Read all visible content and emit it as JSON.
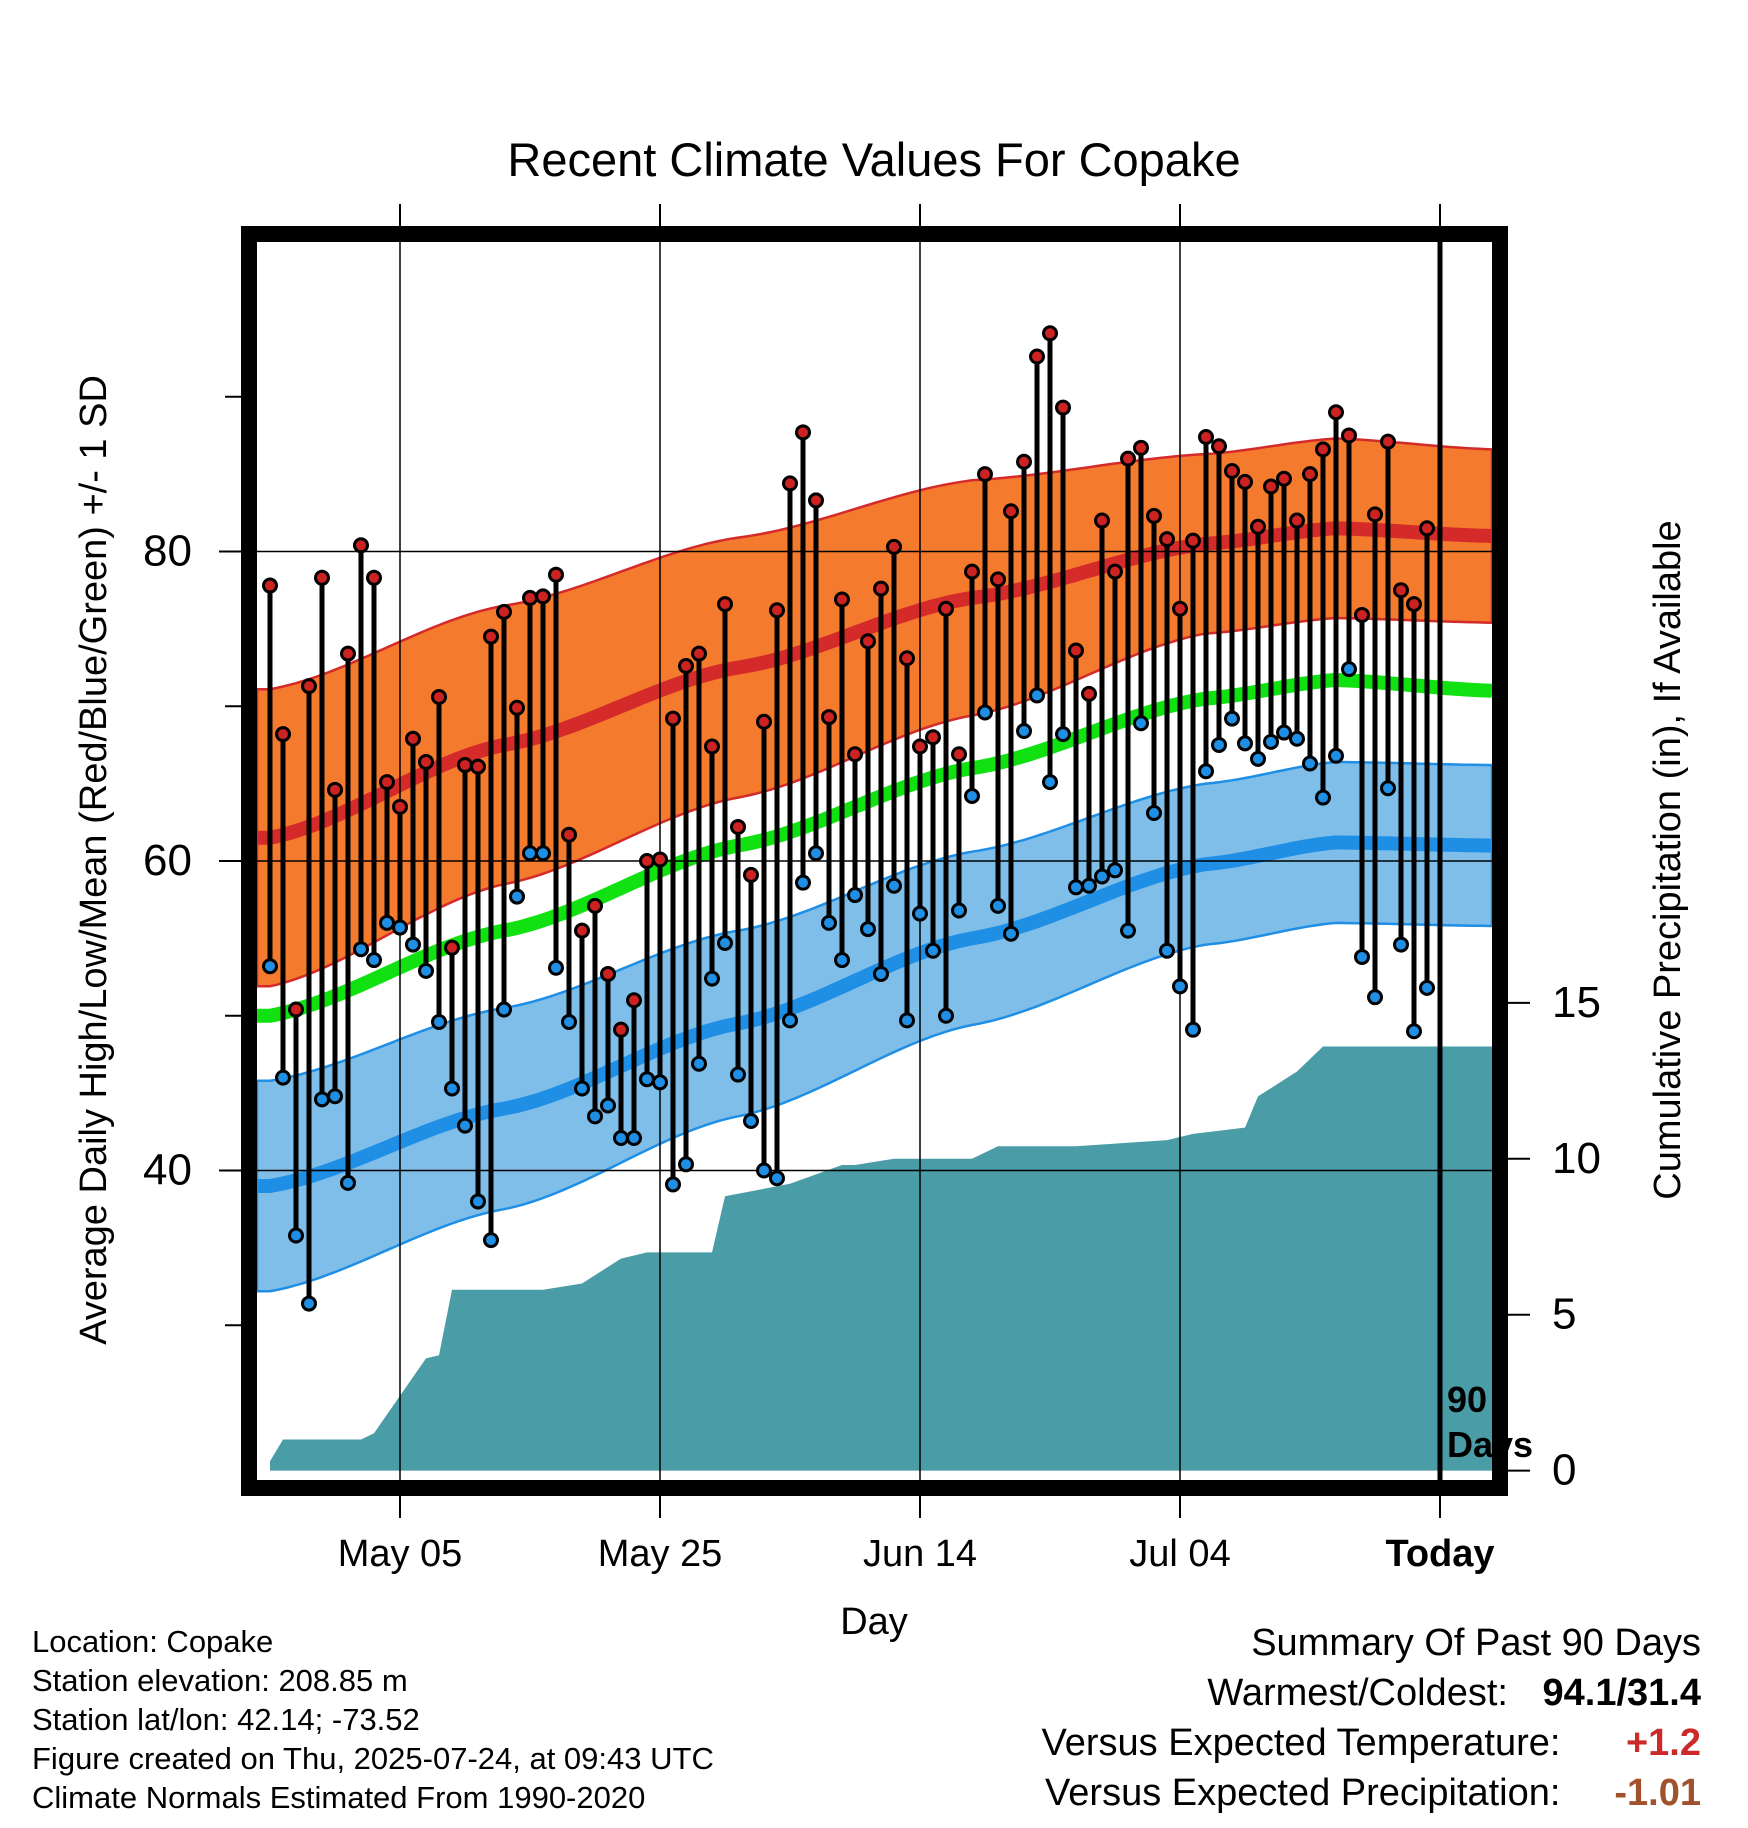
{
  "chart_data": {
    "type": "line",
    "title": "Recent Climate Values For Copake",
    "xlabel": "Day",
    "ylabel_left": "Average Daily High/Low/Mean (Red/Blue/Green) +/- 1 SD",
    "ylabel_right": "Cumulative Precipitation (in), If Available",
    "x_tick_labels": [
      "May 05",
      "May 25",
      "Jun 14",
      "Jul 04",
      "Today"
    ],
    "x_tick_days": [
      10,
      30,
      50,
      70,
      90
    ],
    "xlim": [
      -1,
      94
    ],
    "ylim_temp": [
      20,
      100
    ],
    "y_ticks_temp": [
      40,
      60,
      80
    ],
    "y_minor_ticks_temp": [
      30,
      50,
      70,
      90
    ],
    "ylim_precip": [
      -0.3,
      39.4
    ],
    "y_ticks_precip": [
      0,
      5,
      10,
      15
    ],
    "today_marker_label": [
      "90",
      "Days"
    ],
    "grid": true,
    "series": [
      {
        "name": "High",
        "color": "#cc2222",
        "values": [
          77.8,
          68.2,
          50.4,
          71.3,
          78.3,
          64.6,
          73.4,
          80.4,
          78.3,
          65.1,
          63.5,
          67.9,
          66.4,
          70.6,
          54.4,
          66.2,
          66.1,
          74.5,
          76.1,
          69.9,
          77.0,
          77.1,
          78.5,
          61.7,
          55.5,
          57.1,
          52.7,
          49.1,
          51.0,
          60.0,
          60.1,
          69.2,
          72.6,
          73.4,
          67.4,
          76.6,
          62.2,
          59.1,
          69.0,
          76.2,
          84.4,
          87.7,
          83.3,
          69.3,
          76.9,
          66.9,
          74.2,
          77.6,
          80.3,
          73.1,
          67.4,
          68.0,
          76.3,
          66.9,
          78.7,
          85.0,
          78.2,
          82.6,
          85.8,
          92.6,
          94.1,
          89.3,
          73.6,
          70.8,
          82.0,
          78.7,
          86.0,
          86.7,
          82.3,
          80.8,
          76.3,
          80.7,
          87.4,
          86.8,
          85.2,
          84.5,
          81.6,
          84.2,
          84.7,
          82.0,
          85.0,
          86.6,
          89.0,
          87.5,
          75.9,
          82.4,
          87.1,
          77.5,
          76.6,
          81.5
        ]
      },
      {
        "name": "Low",
        "color": "#1f8fe6",
        "values": [
          53.2,
          46.0,
          35.8,
          31.4,
          44.6,
          44.8,
          39.2,
          54.3,
          53.6,
          56.0,
          55.7,
          54.6,
          52.9,
          49.6,
          45.3,
          42.9,
          38.0,
          35.5,
          50.4,
          57.7,
          60.5,
          60.5,
          53.1,
          49.6,
          45.3,
          43.5,
          44.2,
          42.1,
          42.1,
          45.9,
          45.7,
          39.1,
          40.4,
          46.9,
          52.4,
          54.7,
          46.2,
          43.2,
          40.0,
          39.5,
          49.7,
          58.6,
          60.5,
          56.0,
          53.6,
          57.8,
          55.6,
          52.7,
          58.4,
          49.7,
          56.6,
          54.2,
          50.0,
          56.8,
          64.2,
          69.6,
          57.1,
          55.3,
          68.4,
          70.7,
          65.1,
          68.2,
          58.3,
          58.4,
          59.0,
          59.4,
          55.5,
          68.9,
          63.1,
          54.2,
          51.9,
          49.1,
          65.8,
          67.5,
          69.2,
          67.6,
          66.6,
          67.7,
          68.3,
          67.9,
          66.3,
          64.1,
          66.8,
          72.4,
          53.8,
          51.2,
          64.7,
          54.6,
          49.0,
          51.8
        ]
      }
    ],
    "normals": {
      "high_mean": {
        "days": [
          0,
          18,
          36,
          54,
          72,
          82,
          94
        ],
        "values": [
          61.5,
          67.5,
          72.5,
          77.0,
          80.5,
          81.5,
          81.0
        ]
      },
      "high_sd": {
        "days": [
          0,
          18,
          36,
          54,
          72,
          82,
          94
        ],
        "values": [
          9.6,
          9.0,
          8.4,
          7.6,
          5.8,
          5.8,
          5.6
        ]
      },
      "normal_mean": {
        "days": [
          0,
          18,
          36,
          54,
          72,
          82,
          94
        ],
        "values": [
          50.0,
          55.5,
          61.0,
          66.0,
          70.5,
          71.7,
          71.0
        ]
      },
      "low_mean": {
        "days": [
          0,
          18,
          36,
          54,
          72,
          82,
          94
        ],
        "values": [
          39.0,
          44.0,
          49.5,
          55.0,
          59.8,
          61.2,
          61.0
        ]
      },
      "low_sd": {
        "days": [
          0,
          18,
          36,
          54,
          72,
          82,
          94
        ],
        "values": [
          6.8,
          6.5,
          6.0,
          5.6,
          5.2,
          5.2,
          5.2
        ]
      },
      "colors": {
        "high_band": "#f47a2e",
        "high_line": "#d42a2a",
        "mean_line": "#11e011",
        "low_band": "#7fbee8",
        "low_line": "#1f8fe6"
      }
    },
    "precipitation": {
      "color": "#4a9ca7",
      "days": [
        0,
        1,
        7,
        8,
        10,
        12,
        13,
        14,
        21,
        24,
        27,
        29,
        34,
        35,
        40,
        44,
        45,
        48,
        54,
        56,
        62,
        69,
        71,
        75,
        76,
        79,
        81,
        90,
        94
      ],
      "values": [
        0.3,
        1.0,
        1.0,
        1.2,
        2.4,
        3.6,
        3.7,
        5.8,
        5.8,
        6.0,
        6.8,
        7.0,
        7.0,
        8.8,
        9.2,
        9.8,
        9.8,
        10.0,
        10.0,
        10.4,
        10.4,
        10.6,
        10.8,
        11.0,
        12.0,
        12.8,
        13.6,
        13.6,
        13.6
      ]
    }
  },
  "info": {
    "location": "Location: Copake",
    "elevation": "Station elevation: 208.85 m",
    "latlon": "Station lat/lon: 42.14; -73.52",
    "created": "Figure created on Thu, 2025-07-24, at 09:43 UTC",
    "normals": "Climate Normals Estimated From 1990-2020"
  },
  "summary": {
    "heading": "Summary Of Past 90 Days",
    "warmest_coldest_label": "Warmest/Coldest:",
    "warmest_coldest_value": "94.1/31.4",
    "temp_label": "Versus Expected Temperature:",
    "temp_value": "+1.2",
    "temp_color": "#cc2a2a",
    "precip_label": "Versus Expected Precipitation:",
    "precip_value": "-1.01",
    "precip_color": "#a0522d"
  }
}
